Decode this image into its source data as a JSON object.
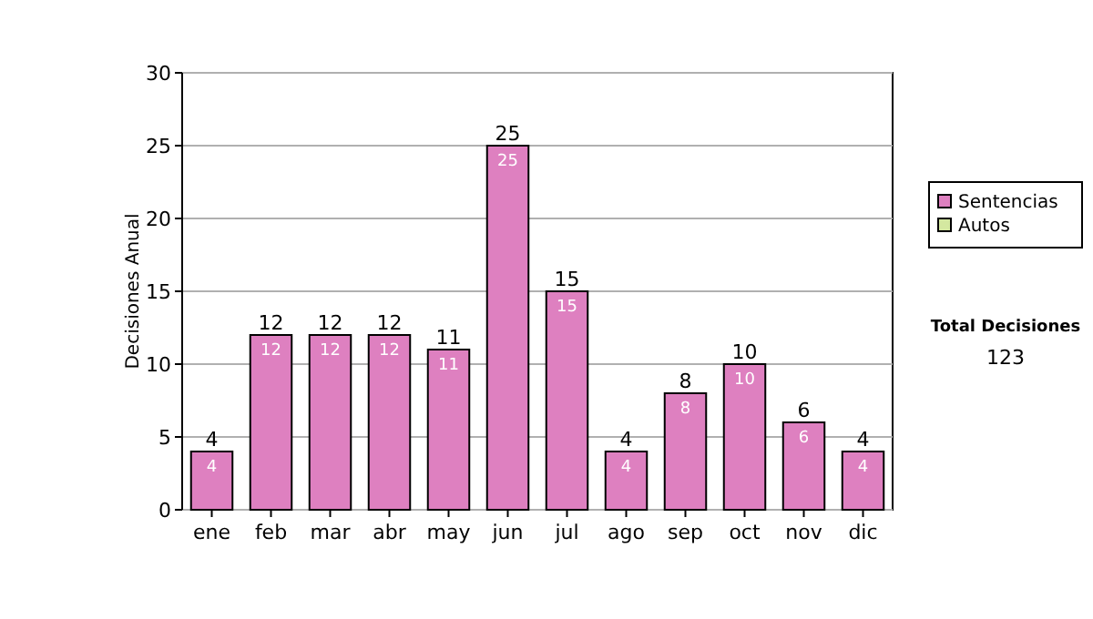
{
  "chart_data": {
    "type": "bar",
    "stacked": true,
    "ylabel": "Decisiones Anual",
    "categories": [
      "ene",
      "feb",
      "mar",
      "abr",
      "may",
      "jun",
      "jul",
      "ago",
      "sep",
      "oct",
      "nov",
      "dic"
    ],
    "series": [
      {
        "name": "Sentencias",
        "color": "#de80c0",
        "values": [
          4,
          12,
          12,
          12,
          11,
          25,
          15,
          4,
          8,
          10,
          6,
          4
        ],
        "value_labels": [
          "4",
          "12",
          "12",
          "12",
          "11",
          "25",
          "15",
          "4",
          "8",
          "10",
          "6",
          "4"
        ]
      },
      {
        "name": "Autos",
        "color": "#d4e8a0",
        "values": [
          0,
          0,
          0,
          0,
          0,
          0,
          0,
          0,
          0,
          0,
          0,
          0
        ]
      }
    ],
    "totals": [
      "4",
      "12",
      "12",
      "12",
      "11",
      "25",
      "15",
      "4",
      "8",
      "10",
      "6",
      "4"
    ],
    "ylim": [
      0,
      30
    ],
    "yticks": [
      0,
      5,
      10,
      15,
      20,
      25,
      30
    ],
    "grid": "y",
    "legend": "right",
    "annotations": [
      "Total Decisiones",
      "123"
    ]
  }
}
